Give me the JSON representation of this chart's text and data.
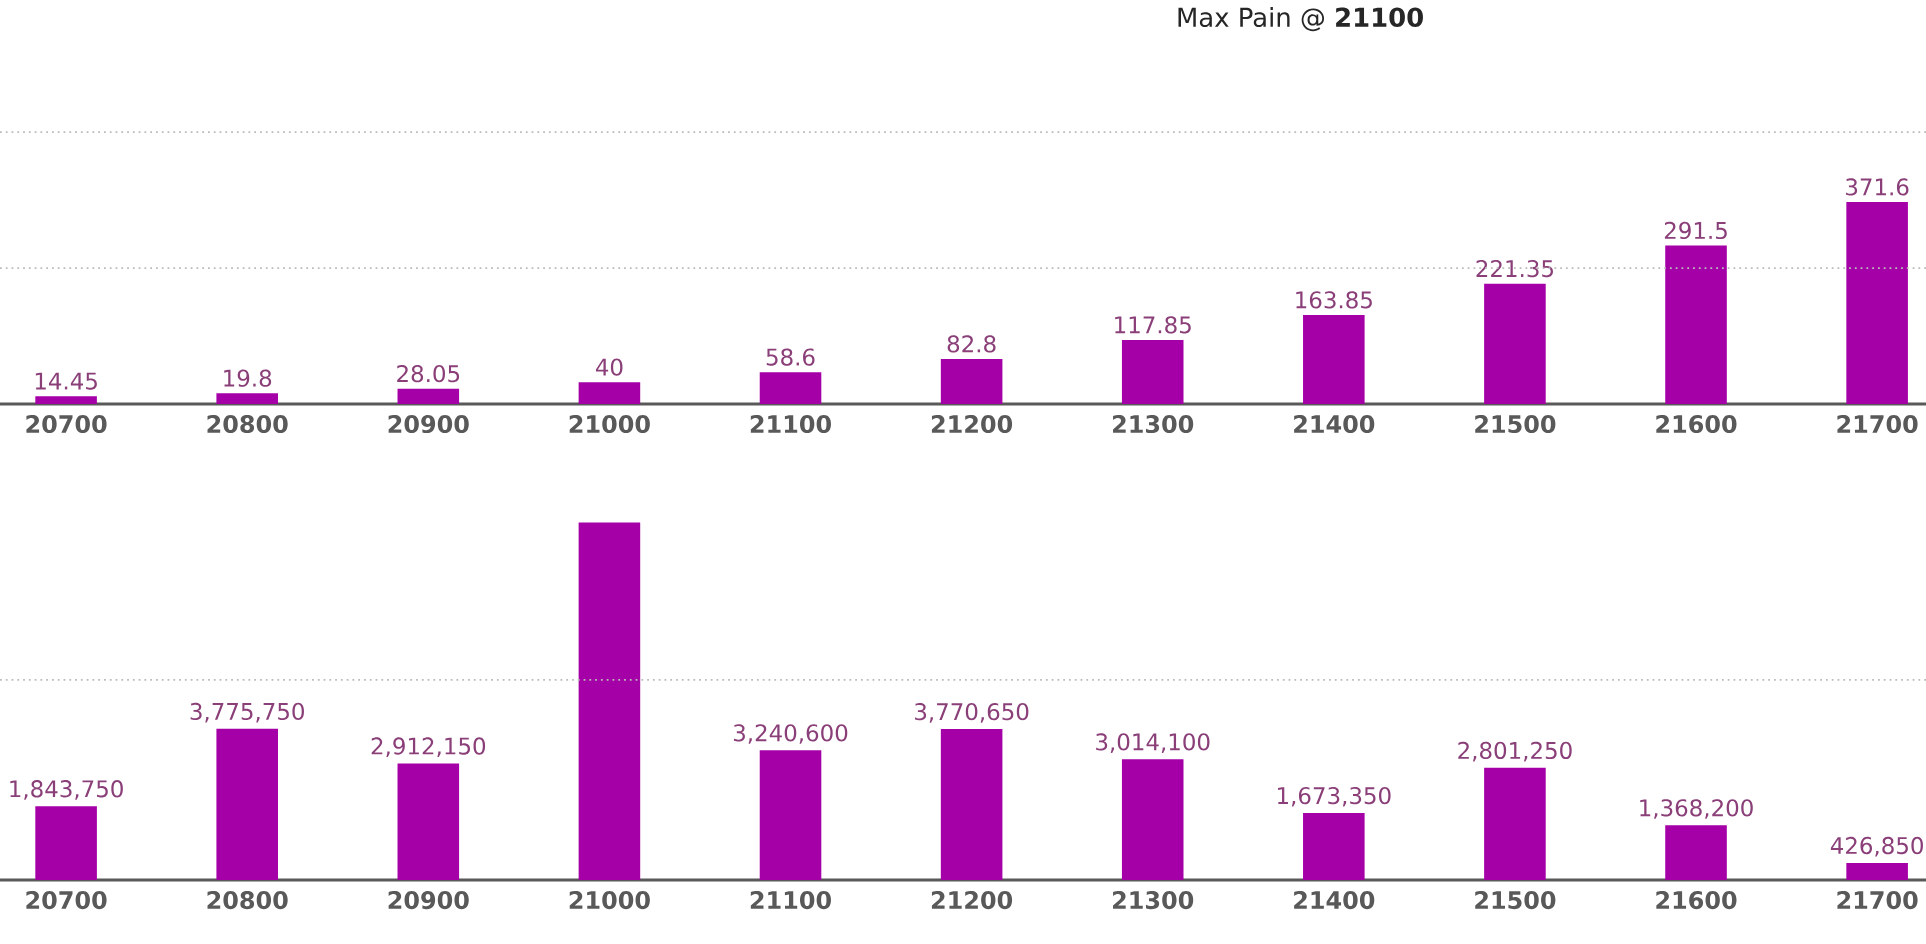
{
  "chart_data": [
    {
      "type": "bar",
      "title": "Max Pain @ **21100**",
      "categories": [
        "20700",
        "20800",
        "20900",
        "21000",
        "21100",
        "21200",
        "21300",
        "21400",
        "21500",
        "21600",
        "21700"
      ],
      "values": [
        14.45,
        19.8,
        28.05,
        40,
        58.6,
        82.8,
        117.85,
        163.85,
        221.35,
        291.5,
        371.6
      ],
      "value_labels": [
        "14.45",
        "19.8",
        "28.05",
        "40",
        "58.6",
        "82.8",
        "117.85",
        "163.85",
        "221.35",
        "291.5",
        "371.6"
      ],
      "color": "#a500a8",
      "ref_lines": [
        {
          "axis": "y",
          "value": 250,
          "color": "#bbbbbb",
          "line_style": "dotted"
        },
        {
          "axis": "y",
          "value": 500,
          "color": "#bbbbbb",
          "line_style": "dotted"
        }
      ],
      "tick_labels": "x"
    },
    {
      "type": "bar",
      "categories": [
        "20700",
        "20800",
        "20900",
        "21000",
        "21100",
        "21200",
        "21300",
        "21400",
        "21500",
        "21600",
        "21700"
      ],
      "values": [
        1843750,
        3775750,
        2912150,
        8930000,
        3240600,
        3770650,
        3014100,
        1673350,
        2801250,
        1368200,
        426850
      ],
      "value_labels": [
        "1,843,750",
        "3,775,750",
        "2,912,150",
        null,
        "3,240,600",
        "3,770,650",
        "3,014,100",
        "1,673,350",
        "2,801,250",
        "1,368,200",
        "426,850"
      ],
      "color": "#a500a8",
      "ref_lines": [
        {
          "axis": "y",
          "value": 5000000,
          "color": "#bbbbbb",
          "line_style": "dotted"
        }
      ],
      "tick_labels": "x"
    }
  ]
}
